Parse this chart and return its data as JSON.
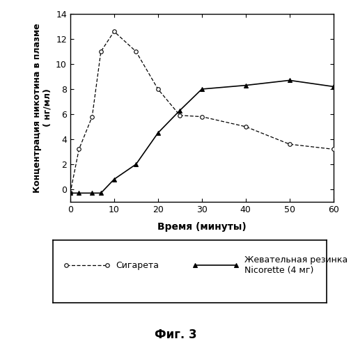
{
  "cigarette_x": [
    0,
    2,
    5,
    7,
    10,
    15,
    20,
    25,
    30,
    40,
    50,
    60
  ],
  "cigarette_y": [
    -0.3,
    3.2,
    5.8,
    11.0,
    12.6,
    11.0,
    8.0,
    5.9,
    5.8,
    5.0,
    3.6,
    3.2
  ],
  "gum_x": [
    0,
    2,
    5,
    7,
    10,
    15,
    20,
    25,
    30,
    40,
    50,
    60
  ],
  "gum_y": [
    -0.3,
    -0.3,
    -0.3,
    -0.3,
    0.8,
    2.0,
    4.5,
    6.3,
    8.0,
    8.3,
    8.7,
    8.2
  ],
  "xlabel": "Время (минуты)",
  "ylabel": "Концентрация никотина в плазме\n( нг/мл)",
  "legend_cigarette": "Сигарета",
  "legend_gum": "Жевательная резинка\nNicorette (4 мг)",
  "fig_label": "Фиг. 3",
  "xlim": [
    0,
    60
  ],
  "ylim": [
    -1,
    14
  ],
  "xticks": [
    0,
    10,
    20,
    30,
    40,
    50,
    60
  ],
  "yticks": [
    0,
    2,
    4,
    6,
    8,
    10,
    12,
    14
  ],
  "background_color": "#ffffff"
}
